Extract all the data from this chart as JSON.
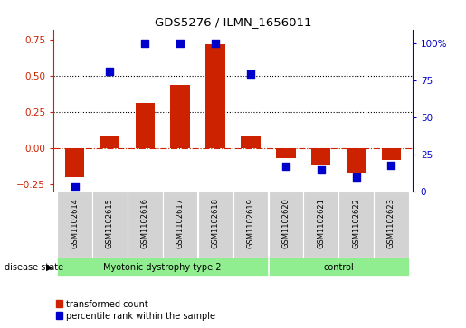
{
  "title": "GDS5276 / ILMN_1656011",
  "samples": [
    "GSM1102614",
    "GSM1102615",
    "GSM1102616",
    "GSM1102617",
    "GSM1102618",
    "GSM1102619",
    "GSM1102620",
    "GSM1102621",
    "GSM1102622",
    "GSM1102623"
  ],
  "transformed_count": [
    -0.2,
    0.09,
    0.31,
    0.44,
    0.72,
    0.09,
    -0.07,
    -0.12,
    -0.17,
    -0.08
  ],
  "percentile_rank": [
    4,
    81,
    100,
    100,
    100,
    79,
    17,
    15,
    10,
    18
  ],
  "groups": [
    {
      "label": "Myotonic dystrophy type 2",
      "start": 0,
      "end": 6,
      "color": "#90EE90"
    },
    {
      "label": "control",
      "start": 6,
      "end": 10,
      "color": "#90EE90"
    }
  ],
  "group_split": 6,
  "ylim_left": [
    -0.3,
    0.82
  ],
  "ylim_right": [
    0,
    109.3
  ],
  "yticks_left": [
    -0.25,
    0.0,
    0.25,
    0.5,
    0.75
  ],
  "yticks_right": [
    0,
    25,
    50,
    75,
    100
  ],
  "ytick_labels_right": [
    "0",
    "25",
    "50",
    "75",
    "100%"
  ],
  "bar_color": "#CC2200",
  "dot_color": "#0000CC",
  "dotted_lines": [
    0.5,
    0.25
  ],
  "disease_state_label": "disease state",
  "legend_red": "transformed count",
  "legend_blue": "percentile rank within the sample",
  "background_sample": "#D3D3D3",
  "bar_width": 0.55,
  "dot_size": 40
}
